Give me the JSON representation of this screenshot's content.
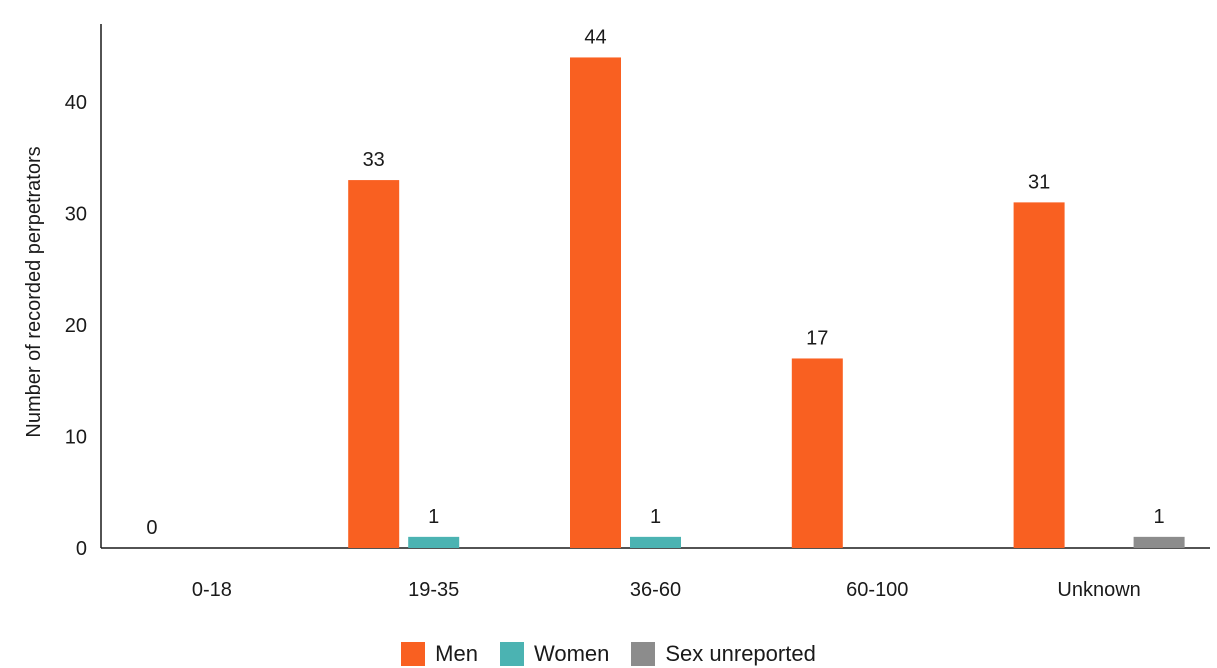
{
  "chart_data": {
    "type": "bar",
    "ylabel": "Number of recorded perpetrators",
    "xlabel": "",
    "categories": [
      "0-18",
      "19-35",
      "36-60",
      "60-100",
      "Unknown"
    ],
    "series": [
      {
        "name": "Men",
        "color": "#f96021",
        "values": [
          0,
          33,
          44,
          17,
          31
        ]
      },
      {
        "name": "Women",
        "color": "#4bb3b2",
        "values": [
          null,
          1,
          1,
          null,
          null
        ]
      },
      {
        "name": "Sex unreported",
        "color": "#8c8c8c",
        "values": [
          null,
          null,
          null,
          null,
          1
        ]
      }
    ],
    "data_labels": [
      {
        "category": "0-18",
        "series": "Men",
        "text": "0"
      },
      {
        "category": "19-35",
        "series": "Men",
        "text": "33"
      },
      {
        "category": "19-35",
        "series": "Women",
        "text": "1"
      },
      {
        "category": "36-60",
        "series": "Men",
        "text": "44"
      },
      {
        "category": "36-60",
        "series": "Women",
        "text": "1"
      },
      {
        "category": "60-100",
        "series": "Men",
        "text": "17"
      },
      {
        "category": "Unknown",
        "series": "Men",
        "text": "31"
      },
      {
        "category": "Unknown",
        "series": "Sex unreported",
        "text": "1"
      }
    ],
    "yticks": [
      0,
      10,
      20,
      30,
      40
    ],
    "ylim": [
      0,
      47
    ],
    "grid": false,
    "legend_position": "bottom-center"
  }
}
